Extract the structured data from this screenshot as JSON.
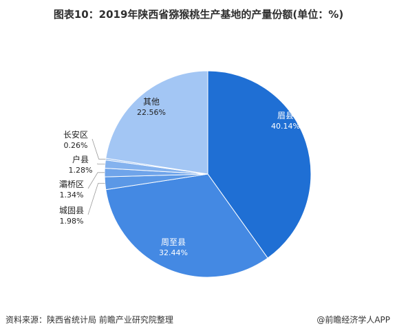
{
  "title": "图表10：2019年陕西省猕猴桃生产基地的产量份额(单位：%)",
  "chart_data": {
    "type": "pie",
    "title": "图表10：2019年陕西省猕猴桃生产基地的产量份额(单位：%)",
    "slices": [
      {
        "label": "眉县",
        "value": 40.14,
        "value_text": "40.14%",
        "color": "#1f6fd4"
      },
      {
        "label": "周至县",
        "value": 32.44,
        "value_text": "32.44%",
        "color": "#4489e3"
      },
      {
        "label": "城固县",
        "value": 1.98,
        "value_text": "1.98%",
        "color": "#5b98e6"
      },
      {
        "label": "灞桥区",
        "value": 1.34,
        "value_text": "1.34%",
        "color": "#6fa4ea"
      },
      {
        "label": "户县",
        "value": 1.28,
        "value_text": "1.28%",
        "color": "#84b2ee"
      },
      {
        "label": "长安区",
        "value": 0.26,
        "value_text": "0.26%",
        "color": "#94bcf0"
      },
      {
        "label": "其他",
        "value": 22.56,
        "value_text": "22.56%",
        "color": "#a3c6f4"
      }
    ],
    "start_angle": "12 o'clock",
    "direction": "clockwise",
    "legend": "none"
  },
  "footer": {
    "source": "资料来源：陕西省统计局 前瞻产业研究院整理",
    "brand": "@前瞻经济学人APP"
  }
}
